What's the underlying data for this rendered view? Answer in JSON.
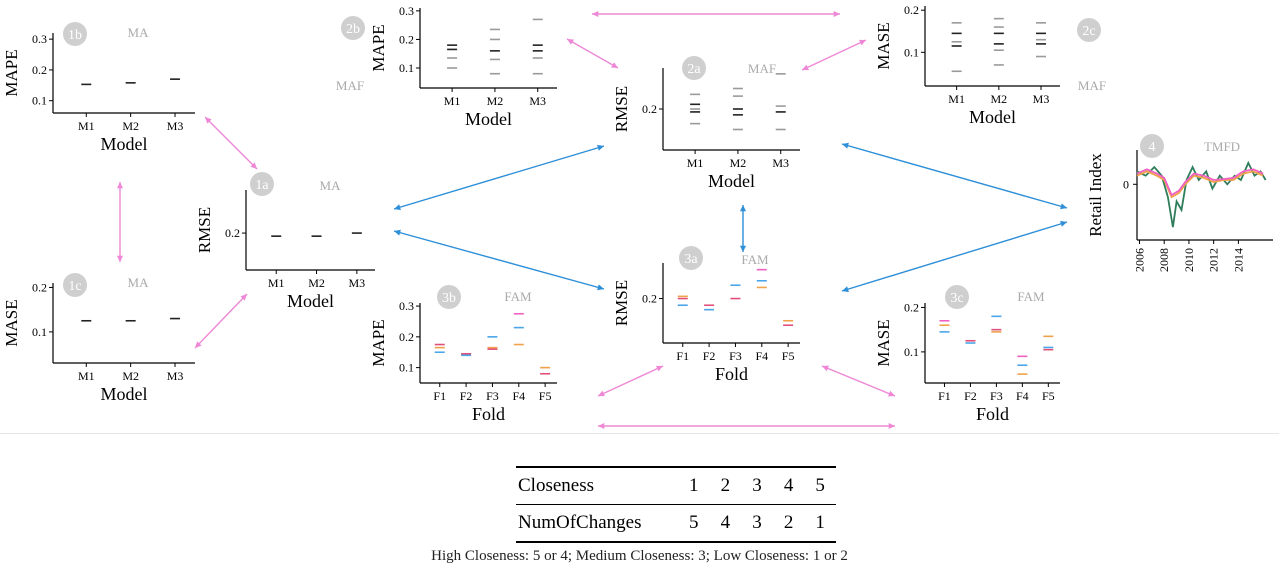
{
  "colors": {
    "pink": "#ee88d6",
    "blue": "#2e8fd8",
    "badge": "#cfcfcf",
    "mark": "#222222",
    "grey": "#9a9a9a",
    "f_blue": "#4aa6e8",
    "f_red": "#e0507a",
    "f_orange": "#f0a24a",
    "f_pink": "#f060c0",
    "green": "#2f7d5a"
  },
  "chart_data": [
    {
      "id": "1a",
      "type": "strip",
      "badge": "1a",
      "tag": "MA",
      "ylabel": "RMSE",
      "xlabel": "Model",
      "categories": [
        "M1",
        "M2",
        "M3"
      ],
      "yticks": [
        0.2
      ],
      "ylim": [
        0.14,
        0.27
      ],
      "series": [
        [
          {
            "v": 0.195,
            "c": "mark"
          }
        ],
        [
          {
            "v": 0.195,
            "c": "mark"
          }
        ],
        [
          {
            "v": 0.2,
            "c": "mark"
          }
        ]
      ]
    },
    {
      "id": "1b",
      "type": "strip",
      "badge": "1b",
      "tag": "MA",
      "ylabel": "MAPE",
      "xlabel": "Model",
      "categories": [
        "M1",
        "M2",
        "M3"
      ],
      "yticks": [
        0.1,
        0.2,
        0.3
      ],
      "ylim": [
        0.06,
        0.32
      ],
      "series": [
        [
          {
            "v": 0.153,
            "c": "mark"
          }
        ],
        [
          {
            "v": 0.158,
            "c": "mark"
          }
        ],
        [
          {
            "v": 0.17,
            "c": "mark"
          }
        ]
      ]
    },
    {
      "id": "1c",
      "type": "strip",
      "badge": "1c",
      "tag": "MA",
      "ylabel": "MASE",
      "xlabel": "Model",
      "categories": [
        "M1",
        "M2",
        "M3"
      ],
      "yticks": [
        0.1,
        0.2
      ],
      "ylim": [
        0.03,
        0.21
      ],
      "series": [
        [
          {
            "v": 0.125,
            "c": "mark"
          }
        ],
        [
          {
            "v": 0.125,
            "c": "mark"
          }
        ],
        [
          {
            "v": 0.13,
            "c": "mark"
          }
        ]
      ]
    },
    {
      "id": "2a",
      "type": "strip",
      "badge": "2a",
      "tag": "MAF",
      "ylabel": "RMSE",
      "xlabel": "Model",
      "categories": [
        "M1",
        "M2",
        "M3"
      ],
      "yticks": [
        0.2
      ],
      "ylim": [
        0.13,
        0.27
      ],
      "series": [
        [
          {
            "v": 0.225,
            "c": "grey"
          },
          {
            "v": 0.208,
            "c": "mark"
          },
          {
            "v": 0.2,
            "c": "grey"
          },
          {
            "v": 0.195,
            "c": "mark"
          },
          {
            "v": 0.175,
            "c": "grey"
          }
        ],
        [
          {
            "v": 0.235,
            "c": "grey"
          },
          {
            "v": 0.222,
            "c": "grey"
          },
          {
            "v": 0.2,
            "c": "mark"
          },
          {
            "v": 0.19,
            "c": "mark"
          },
          {
            "v": 0.165,
            "c": "grey"
          }
        ],
        [
          {
            "v": 0.26,
            "c": "grey"
          },
          {
            "v": 0.205,
            "c": "grey"
          },
          {
            "v": 0.195,
            "c": "mark"
          },
          {
            "v": 0.165,
            "c": "grey"
          }
        ]
      ]
    },
    {
      "id": "2b",
      "type": "strip",
      "badge": "2b",
      "tag": "MAF",
      "ylabel": "MAPE",
      "xlabel": "Model",
      "categories": [
        "M1",
        "M2",
        "M3"
      ],
      "yticks": [
        0.1,
        0.2,
        0.3
      ],
      "ylim": [
        0.03,
        0.31
      ],
      "series": [
        [
          {
            "v": 0.18,
            "c": "mark"
          },
          {
            "v": 0.165,
            "c": "mark"
          },
          {
            "v": 0.135,
            "c": "grey"
          },
          {
            "v": 0.1,
            "c": "grey"
          }
        ],
        [
          {
            "v": 0.235,
            "c": "grey"
          },
          {
            "v": 0.2,
            "c": "grey"
          },
          {
            "v": 0.16,
            "c": "mark"
          },
          {
            "v": 0.13,
            "c": "grey"
          },
          {
            "v": 0.08,
            "c": "grey"
          }
        ],
        [
          {
            "v": 0.27,
            "c": "grey"
          },
          {
            "v": 0.18,
            "c": "mark"
          },
          {
            "v": 0.16,
            "c": "mark"
          },
          {
            "v": 0.135,
            "c": "grey"
          },
          {
            "v": 0.08,
            "c": "grey"
          }
        ]
      ]
    },
    {
      "id": "2c",
      "type": "strip",
      "badge": "2c",
      "tag": "MAF",
      "ylabel": "MASE",
      "xlabel": "Model",
      "categories": [
        "M1",
        "M2",
        "M3"
      ],
      "yticks": [
        0.1,
        0.2
      ],
      "ylim": [
        0.02,
        0.21
      ],
      "series": [
        [
          {
            "v": 0.17,
            "c": "grey"
          },
          {
            "v": 0.145,
            "c": "mark"
          },
          {
            "v": 0.125,
            "c": "grey"
          },
          {
            "v": 0.115,
            "c": "mark"
          },
          {
            "v": 0.055,
            "c": "grey"
          }
        ],
        [
          {
            "v": 0.18,
            "c": "grey"
          },
          {
            "v": 0.16,
            "c": "grey"
          },
          {
            "v": 0.145,
            "c": "mark"
          },
          {
            "v": 0.12,
            "c": "mark"
          },
          {
            "v": 0.105,
            "c": "grey"
          },
          {
            "v": 0.07,
            "c": "grey"
          }
        ],
        [
          {
            "v": 0.17,
            "c": "grey"
          },
          {
            "v": 0.145,
            "c": "mark"
          },
          {
            "v": 0.13,
            "c": "grey"
          },
          {
            "v": 0.12,
            "c": "mark"
          },
          {
            "v": 0.09,
            "c": "grey"
          }
        ]
      ]
    },
    {
      "id": "3a",
      "type": "strip",
      "badge": "3a",
      "tag": "FAM",
      "ylabel": "RMSE",
      "xlabel": "Fold",
      "categories": [
        "F1",
        "F2",
        "F3",
        "F4",
        "F5"
      ],
      "yticks": [
        0.2
      ],
      "ylim": [
        0.1,
        0.28
      ],
      "series": [
        [
          {
            "v": 0.205,
            "c": "f_orange"
          },
          {
            "v": 0.2,
            "c": "f_red"
          },
          {
            "v": 0.185,
            "c": "f_blue"
          }
        ],
        [
          {
            "v": 0.185,
            "c": "f_red"
          },
          {
            "v": 0.175,
            "c": "f_blue"
          }
        ],
        [
          {
            "v": 0.23,
            "c": "f_blue"
          },
          {
            "v": 0.2,
            "c": "f_red"
          }
        ],
        [
          {
            "v": 0.265,
            "c": "f_pink"
          },
          {
            "v": 0.24,
            "c": "f_blue"
          },
          {
            "v": 0.225,
            "c": "f_orange"
          }
        ],
        [
          {
            "v": 0.15,
            "c": "f_orange"
          },
          {
            "v": 0.14,
            "c": "f_red"
          }
        ]
      ]
    },
    {
      "id": "3b",
      "type": "strip",
      "badge": "3b",
      "tag": "FAM",
      "ylabel": "MAPE",
      "xlabel": "Fold",
      "categories": [
        "F1",
        "F2",
        "F3",
        "F4",
        "F5"
      ],
      "yticks": [
        0.1,
        0.2,
        0.3
      ],
      "ylim": [
        0.05,
        0.31
      ],
      "series": [
        [
          {
            "v": 0.175,
            "c": "f_red"
          },
          {
            "v": 0.165,
            "c": "f_orange"
          },
          {
            "v": 0.15,
            "c": "f_blue"
          }
        ],
        [
          {
            "v": 0.145,
            "c": "f_red"
          },
          {
            "v": 0.14,
            "c": "f_blue"
          }
        ],
        [
          {
            "v": 0.2,
            "c": "f_blue"
          },
          {
            "v": 0.165,
            "c": "f_orange"
          },
          {
            "v": 0.16,
            "c": "f_red"
          }
        ],
        [
          {
            "v": 0.275,
            "c": "f_pink"
          },
          {
            "v": 0.23,
            "c": "f_blue"
          },
          {
            "v": 0.175,
            "c": "f_orange"
          }
        ],
        [
          {
            "v": 0.1,
            "c": "f_orange"
          },
          {
            "v": 0.08,
            "c": "f_red"
          }
        ]
      ]
    },
    {
      "id": "3c",
      "type": "strip",
      "badge": "3c",
      "tag": "FAM",
      "ylabel": "MASE",
      "xlabel": "Fold",
      "categories": [
        "F1",
        "F2",
        "F3",
        "F4",
        "F5"
      ],
      "yticks": [
        0.1,
        0.2
      ],
      "ylim": [
        0.03,
        0.21
      ],
      "series": [
        [
          {
            "v": 0.17,
            "c": "f_pink"
          },
          {
            "v": 0.16,
            "c": "f_orange"
          },
          {
            "v": 0.145,
            "c": "f_blue"
          }
        ],
        [
          {
            "v": 0.125,
            "c": "f_red"
          },
          {
            "v": 0.12,
            "c": "f_blue"
          }
        ],
        [
          {
            "v": 0.18,
            "c": "f_blue"
          },
          {
            "v": 0.15,
            "c": "f_red"
          },
          {
            "v": 0.145,
            "c": "f_orange"
          }
        ],
        [
          {
            "v": 0.09,
            "c": "f_pink"
          },
          {
            "v": 0.07,
            "c": "f_blue"
          },
          {
            "v": 0.05,
            "c": "f_orange"
          }
        ],
        [
          {
            "v": 0.135,
            "c": "f_orange"
          },
          {
            "v": 0.11,
            "c": "f_blue"
          },
          {
            "v": 0.105,
            "c": "f_red"
          }
        ]
      ]
    },
    {
      "id": "4",
      "type": "line",
      "badge": "4",
      "tag": "TMFD",
      "ylabel": "Retail Index",
      "xticks": [
        "2006",
        "2008",
        "2010",
        "2012",
        "2014"
      ],
      "yticks": [
        "0"
      ],
      "xlim": [
        2005.8,
        2016.8
      ],
      "ylim": [
        -1.3,
        0.8
      ],
      "series": [
        {
          "c": "green",
          "points": [
            [
              2005.8,
              0.3
            ],
            [
              2006.5,
              0.2
            ],
            [
              2007.2,
              0.4
            ],
            [
              2007.8,
              0.2
            ],
            [
              2008.3,
              -0.3
            ],
            [
              2008.7,
              -1.0
            ],
            [
              2009.0,
              -0.4
            ],
            [
              2009.4,
              -0.6
            ],
            [
              2009.8,
              0.1
            ],
            [
              2010.3,
              0.4
            ],
            [
              2010.8,
              0.1
            ],
            [
              2011.4,
              0.3
            ],
            [
              2011.9,
              -0.1
            ],
            [
              2012.5,
              0.2
            ],
            [
              2013.1,
              0.0
            ],
            [
              2013.7,
              0.2
            ],
            [
              2014.2,
              0.1
            ],
            [
              2014.8,
              0.5
            ],
            [
              2015.3,
              0.2
            ],
            [
              2015.8,
              0.3
            ],
            [
              2016.2,
              0.1
            ]
          ]
        },
        {
          "c": "f_orange",
          "points": [
            [
              2005.8,
              0.2
            ],
            [
              2006.6,
              0.3
            ],
            [
              2007.4,
              0.2
            ],
            [
              2008.0,
              0.1
            ],
            [
              2008.6,
              -0.3
            ],
            [
              2009.2,
              -0.2
            ],
            [
              2009.7,
              0.0
            ],
            [
              2010.4,
              0.2
            ],
            [
              2011.2,
              0.15
            ],
            [
              2012.0,
              0.05
            ],
            [
              2012.8,
              0.1
            ],
            [
              2013.6,
              0.1
            ],
            [
              2014.4,
              0.25
            ],
            [
              2015.2,
              0.3
            ],
            [
              2016.0,
              0.2
            ]
          ]
        },
        {
          "c": "f_pink",
          "points": [
            [
              2005.8,
              0.25
            ],
            [
              2006.6,
              0.35
            ],
            [
              2007.4,
              0.25
            ],
            [
              2008.0,
              0.15
            ],
            [
              2008.6,
              -0.25
            ],
            [
              2009.2,
              -0.15
            ],
            [
              2009.7,
              0.05
            ],
            [
              2010.4,
              0.25
            ],
            [
              2011.2,
              0.2
            ],
            [
              2012.0,
              0.1
            ],
            [
              2012.8,
              0.12
            ],
            [
              2013.6,
              0.15
            ],
            [
              2014.4,
              0.3
            ],
            [
              2015.2,
              0.35
            ],
            [
              2016.0,
              0.25
            ]
          ]
        }
      ]
    }
  ],
  "table": {
    "rows": [
      {
        "label": "Closeness",
        "values": [
          "1",
          "2",
          "3",
          "4",
          "5"
        ]
      },
      {
        "label": "NumOfChanges",
        "values": [
          "5",
          "4",
          "3",
          "2",
          "1"
        ]
      }
    ]
  },
  "caption": "High Closeness: 5 or 4; Medium Closeness: 3; Low Closeness: 1 or 2"
}
